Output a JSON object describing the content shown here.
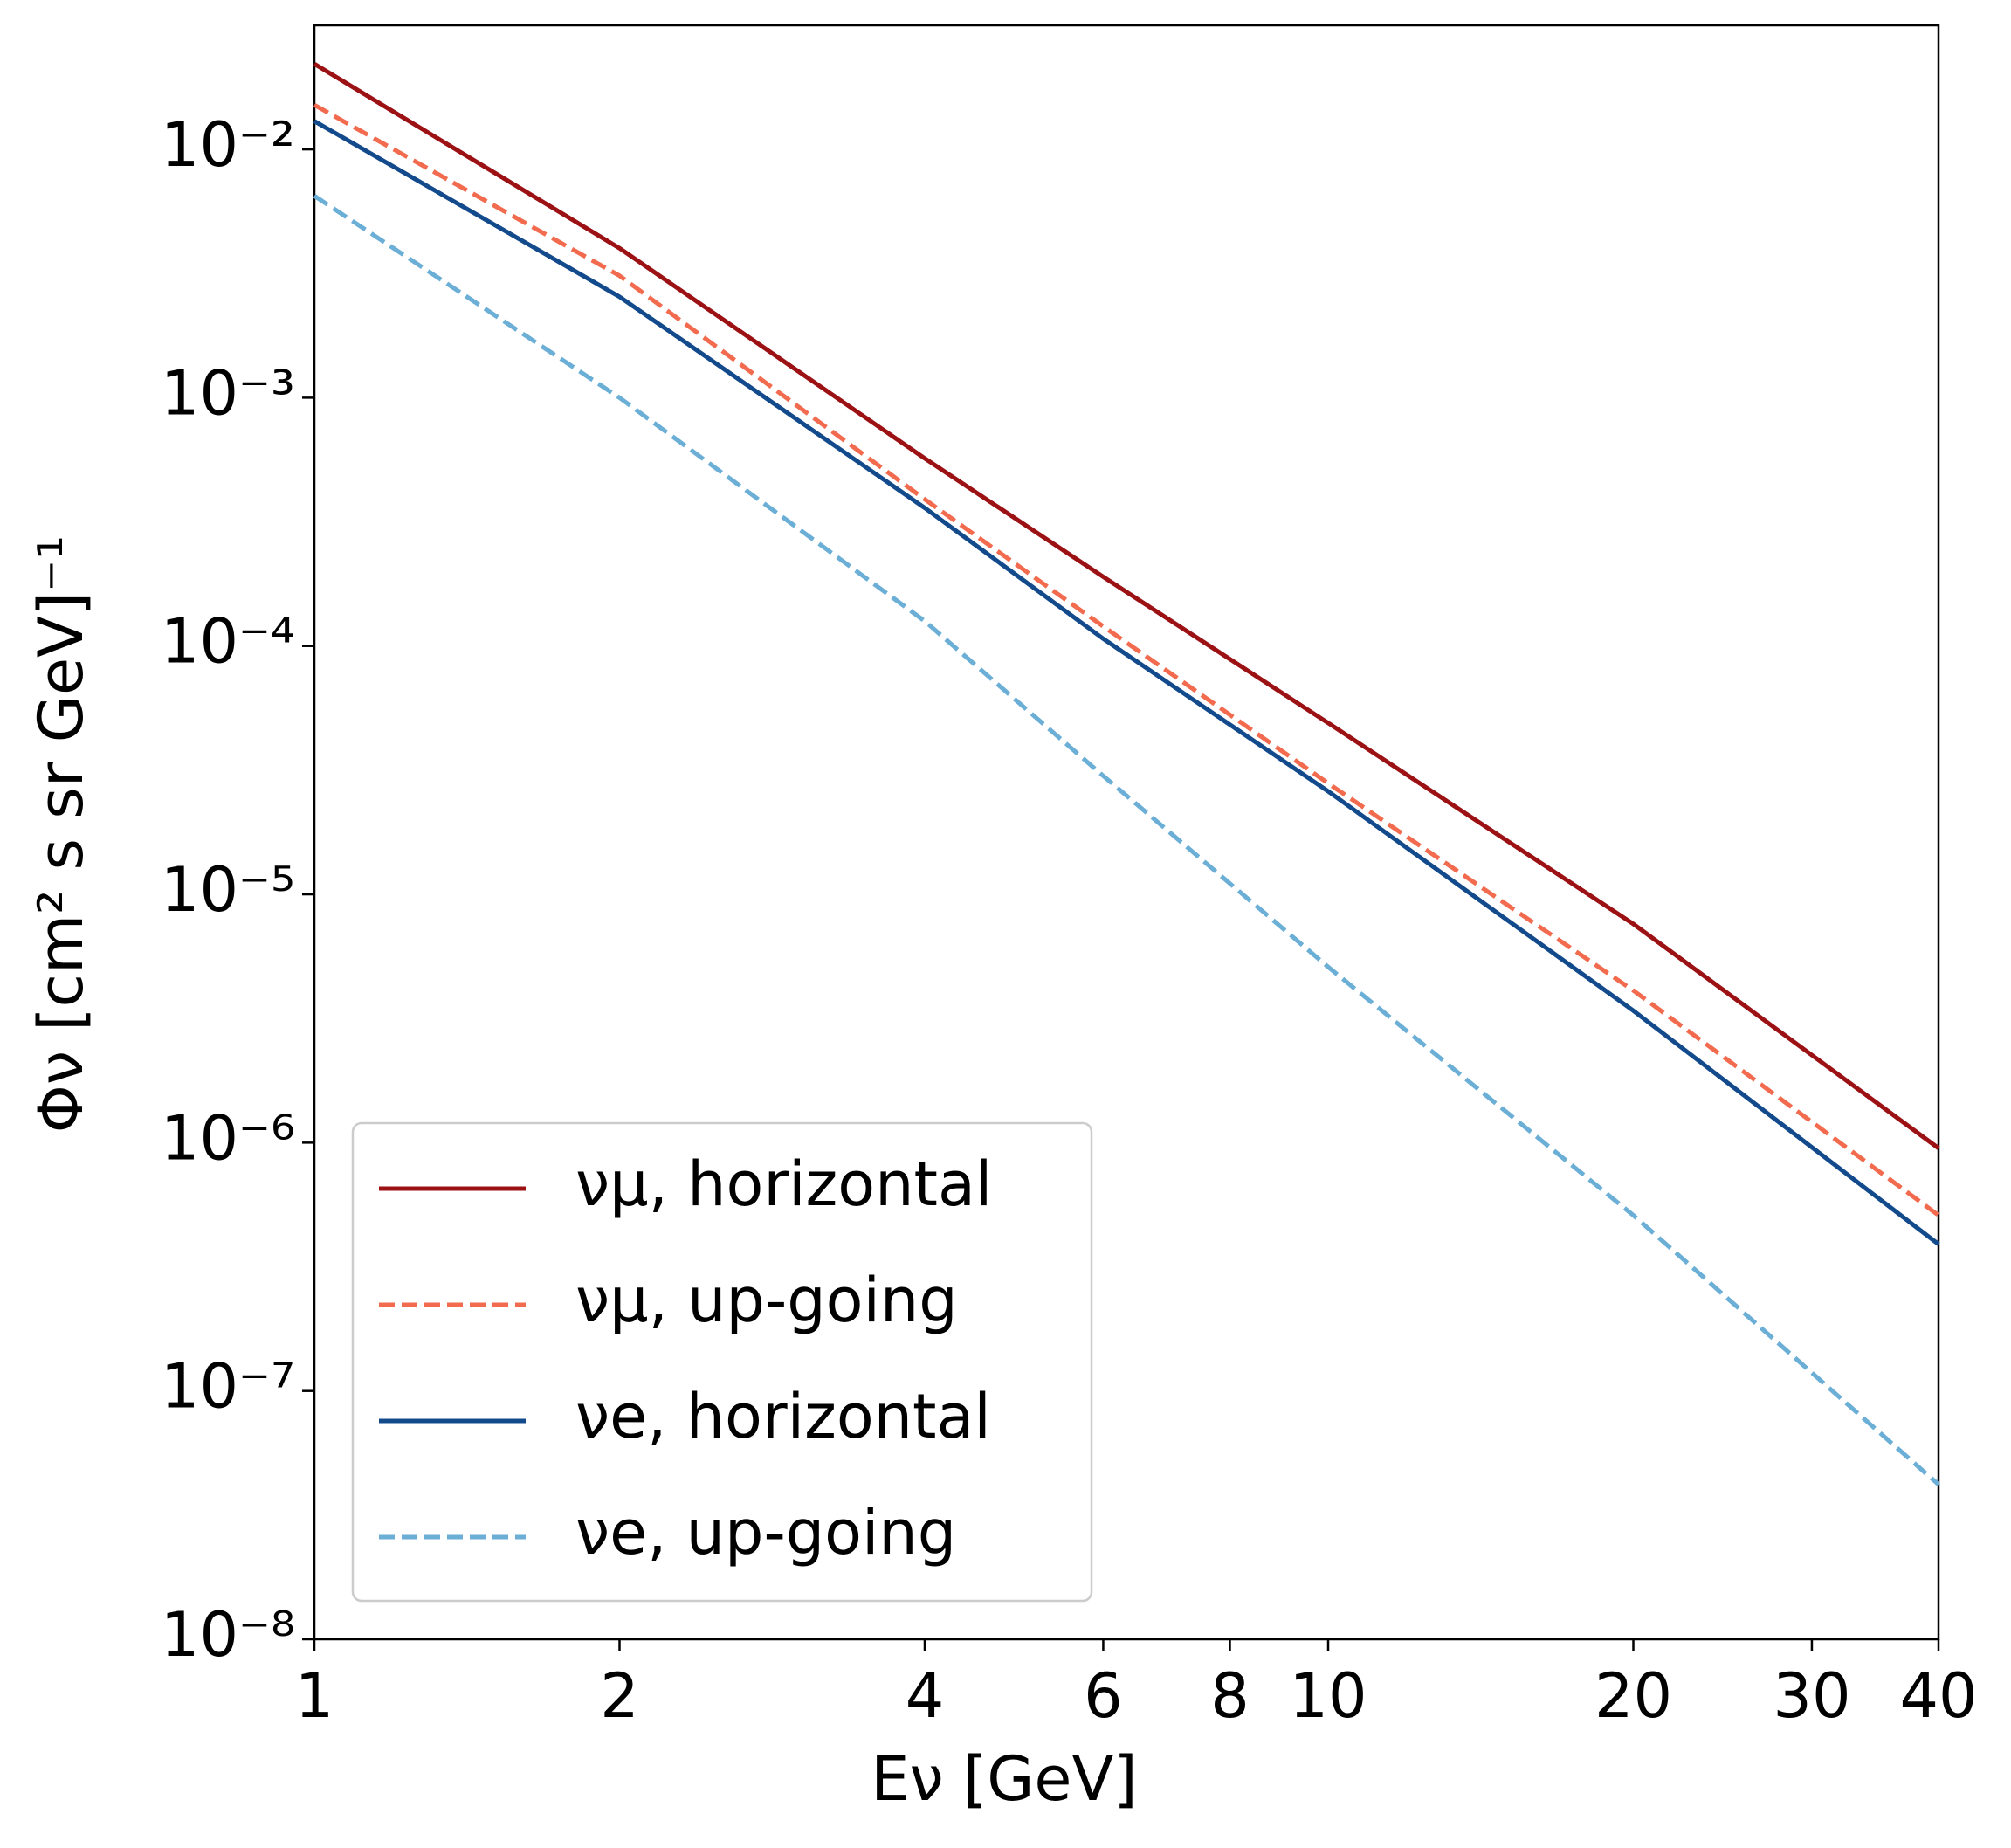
{
  "chart_data": {
    "type": "line",
    "xlabel": "Eν [GeV]",
    "ylabel": "Φν [cm² s sr GeV]⁻¹",
    "x": [
      1,
      2,
      4,
      6,
      10,
      20,
      40
    ],
    "series": [
      {
        "name": "νμ, horizontal",
        "color": "#9b1114",
        "linestyle": "solid",
        "values": [
          0.0221,
          0.004,
          0.00057,
          0.00019,
          4.9e-05,
          7.6e-06,
          9.5e-07
        ]
      },
      {
        "name": "νμ, up-going",
        "color": "#f26b4f",
        "linestyle": "dashed",
        "values": [
          0.0151,
          0.0031,
          0.00039,
          0.00012,
          2.8e-05,
          4.1e-06,
          5.1e-07
        ]
      },
      {
        "name": "νe, horizontal",
        "color": "#124a8c",
        "linestyle": "solid",
        "values": [
          0.013,
          0.00255,
          0.00036,
          0.000107,
          2.6e-05,
          3.4e-06,
          3.9e-07
        ]
      },
      {
        "name": "νe, up-going",
        "color": "#6baed6",
        "linestyle": "dashed",
        "values": [
          0.0065,
          0.001,
          0.000126,
          3e-05,
          5.1e-06,
          5.1e-07,
          4.2e-08
        ]
      }
    ],
    "xscale": "log",
    "yscale": "log",
    "xlim": [
      1,
      40
    ],
    "ylim": [
      1e-08,
      0.0316
    ],
    "xticks": [
      1,
      2,
      4,
      6,
      8,
      10,
      20,
      30,
      40
    ],
    "yticks": [
      {
        "value": 1e-08,
        "label": "10⁻⁸"
      },
      {
        "value": 1e-07,
        "label": "10⁻⁷"
      },
      {
        "value": 1e-06,
        "label": "10⁻⁶"
      },
      {
        "value": 1e-05,
        "label": "10⁻⁵"
      },
      {
        "value": 0.0001,
        "label": "10⁻⁴"
      },
      {
        "value": 0.001,
        "label": "10⁻³"
      },
      {
        "value": 0.01,
        "label": "10⁻²"
      }
    ],
    "legend": "lower left"
  }
}
